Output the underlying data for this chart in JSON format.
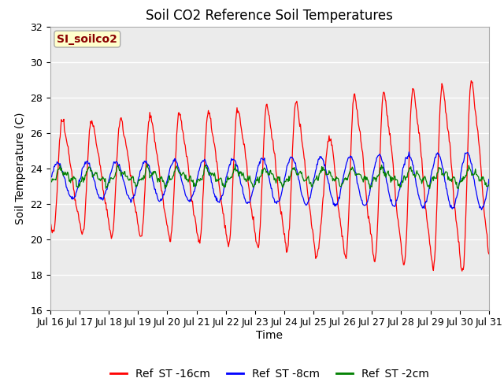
{
  "title": "Soil CO2 Reference Soil Temperatures",
  "xlabel": "Time",
  "ylabel": "Soil Temperature (C)",
  "ylim": [
    16,
    32
  ],
  "yticks": [
    16,
    18,
    20,
    22,
    24,
    26,
    28,
    30,
    32
  ],
  "xtick_labels": [
    "Jul 16",
    "Jul 17",
    "Jul 18",
    "Jul 19",
    "Jul 20",
    "Jul 21",
    "Jul 22",
    "Jul 23",
    "Jul 24",
    "Jul 25",
    "Jul 26",
    "Jul 27",
    "Jul 28",
    "Jul 29",
    "Jul 30",
    "Jul 31"
  ],
  "annotation_text": "SI_soilco2",
  "annotation_color": "#8B0000",
  "annotation_bg": "#FFFFCC",
  "annotation_edge": "#AAAAAA",
  "legend_labels": [
    "Ref_ST -16cm",
    "Ref_ST -8cm",
    "Ref_ST -2cm"
  ],
  "line_colors": [
    "red",
    "blue",
    "green"
  ],
  "title_fontsize": 12,
  "axis_label_fontsize": 10,
  "tick_fontsize": 9,
  "legend_fontsize": 10,
  "plot_bg_color": "#EBEBEB",
  "fig_bg_color": "#FFFFFF",
  "n_points": 720,
  "days": 15,
  "red_mean": 23.5,
  "red_amp_base": 4.0,
  "red_amp_growth": 3.0,
  "blue_mean": 23.3,
  "blue_amp_base": 1.0,
  "blue_amp_growth": 0.6,
  "green_mean": 23.5,
  "green_amp": 0.45,
  "period_hours": 24
}
